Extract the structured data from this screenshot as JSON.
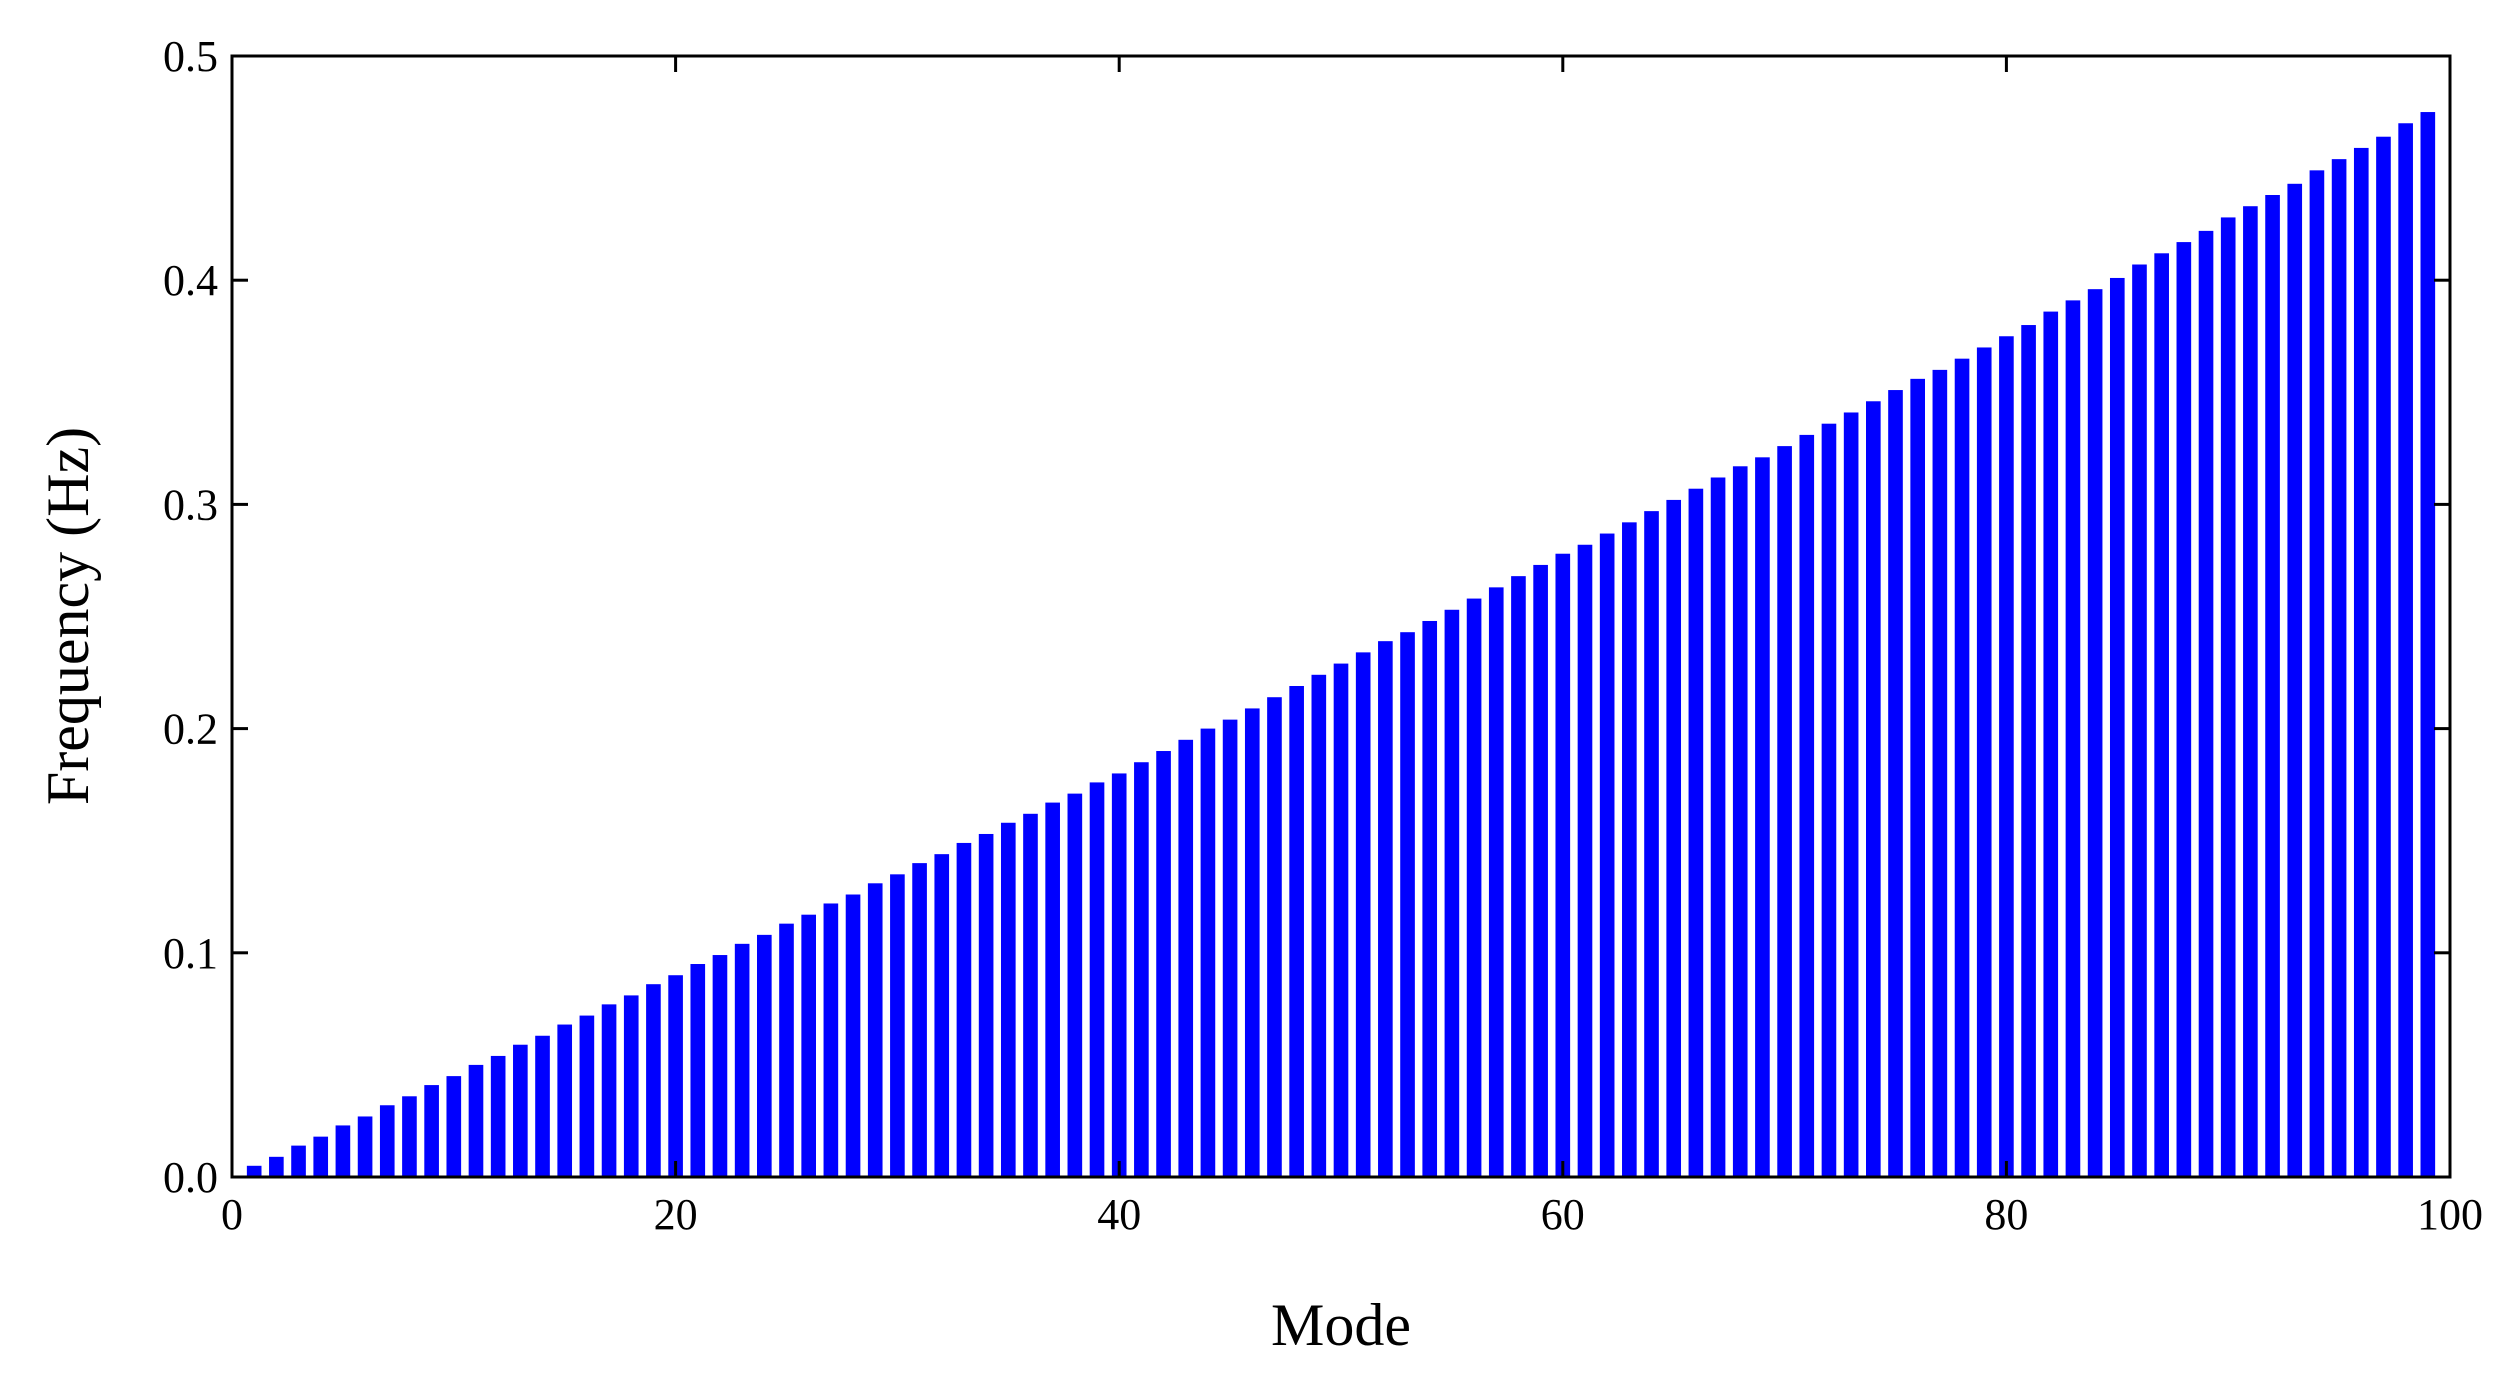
{
  "chart_data": {
    "type": "bar",
    "xlabel": "Mode",
    "ylabel": "Frequency (Hz)",
    "x": [
      1,
      2,
      3,
      4,
      5,
      6,
      7,
      8,
      9,
      10,
      11,
      12,
      13,
      14,
      15,
      16,
      17,
      18,
      19,
      20,
      21,
      22,
      23,
      24,
      25,
      26,
      27,
      28,
      29,
      30,
      31,
      32,
      33,
      34,
      35,
      36,
      37,
      38,
      39,
      40,
      41,
      42,
      43,
      44,
      45,
      46,
      47,
      48,
      49,
      50,
      51,
      52,
      53,
      54,
      55,
      56,
      57,
      58,
      59,
      60,
      61,
      62,
      63,
      64,
      65,
      66,
      67,
      68,
      69,
      70,
      71,
      72,
      73,
      74,
      75,
      76,
      77,
      78,
      79,
      80,
      81,
      82,
      83,
      84,
      85,
      86,
      87,
      88,
      89,
      90,
      91,
      92,
      93,
      94,
      95,
      96,
      97,
      98,
      99
    ],
    "values": [
      0.005,
      0.009,
      0.014,
      0.018,
      0.023,
      0.027,
      0.032,
      0.036,
      0.041,
      0.045,
      0.05,
      0.054,
      0.059,
      0.063,
      0.068,
      0.072,
      0.077,
      0.081,
      0.086,
      0.09,
      0.095,
      0.099,
      0.104,
      0.108,
      0.113,
      0.117,
      0.122,
      0.126,
      0.131,
      0.135,
      0.14,
      0.144,
      0.149,
      0.153,
      0.158,
      0.162,
      0.167,
      0.171,
      0.176,
      0.18,
      0.185,
      0.19,
      0.195,
      0.2,
      0.204,
      0.209,
      0.214,
      0.219,
      0.224,
      0.229,
      0.234,
      0.239,
      0.243,
      0.248,
      0.253,
      0.258,
      0.263,
      0.268,
      0.273,
      0.278,
      0.282,
      0.287,
      0.292,
      0.297,
      0.302,
      0.307,
      0.312,
      0.317,
      0.321,
      0.326,
      0.331,
      0.336,
      0.341,
      0.346,
      0.351,
      0.356,
      0.36,
      0.365,
      0.37,
      0.375,
      0.38,
      0.386,
      0.391,
      0.396,
      0.401,
      0.407,
      0.412,
      0.417,
      0.422,
      0.428,
      0.433,
      0.438,
      0.443,
      0.449,
      0.454,
      0.459,
      0.464,
      0.47,
      0.475
    ],
    "color": "#0000ff",
    "xlim": [
      0,
      100
    ],
    "xticks": [
      0,
      20,
      40,
      60,
      80,
      100
    ],
    "ylim": [
      0,
      0.5
    ],
    "yticks": [
      {
        "value": 0,
        "label": "0.0"
      },
      0.1,
      0.2,
      0.3,
      0.4,
      0.5
    ]
  }
}
